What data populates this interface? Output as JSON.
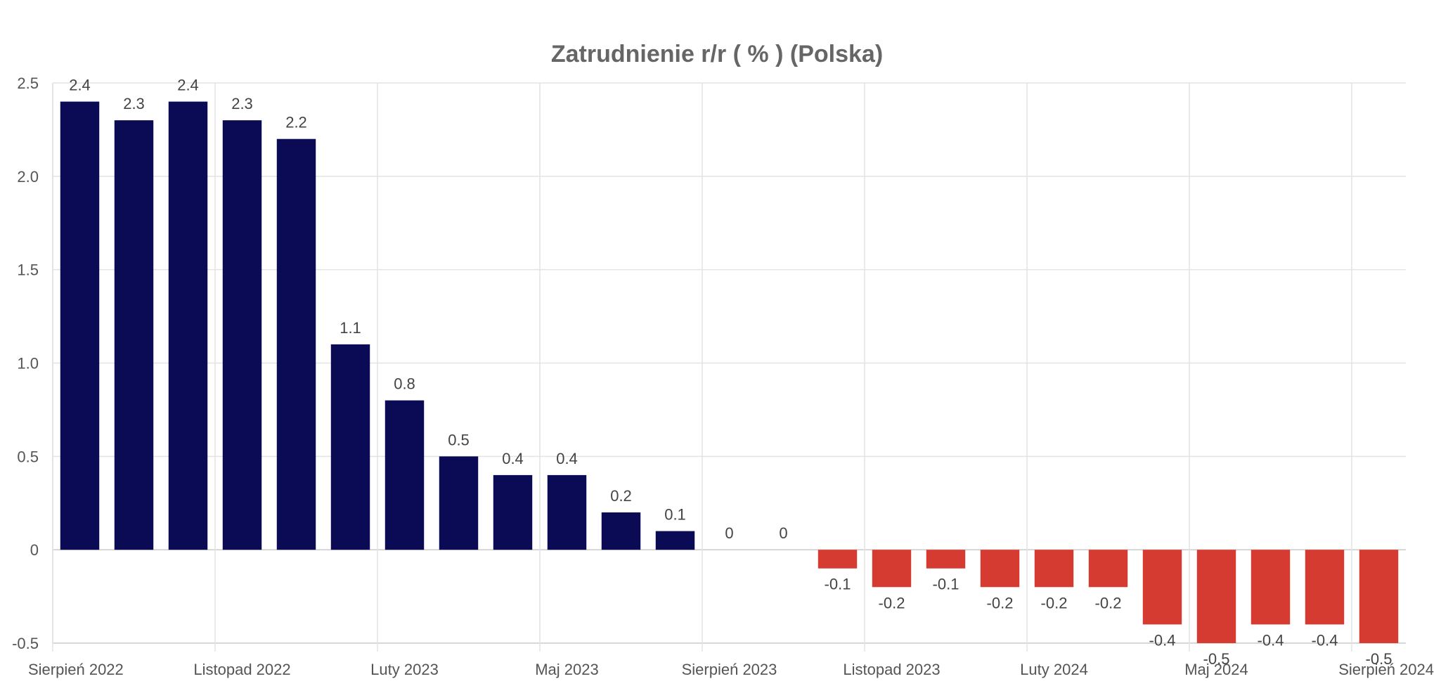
{
  "chart_data": {
    "type": "bar",
    "title": "Zatrudnienie r/r ( % ) (Polska)",
    "xlabel": "",
    "ylabel": "",
    "ylim": [
      -0.5,
      2.5
    ],
    "yticks": [
      {
        "value": 2.5,
        "label": "2.5"
      },
      {
        "value": 2.0,
        "label": "2.0"
      },
      {
        "value": 1.5,
        "label": "1.5"
      },
      {
        "value": 1.0,
        "label": "1.0"
      },
      {
        "value": 0.5,
        "label": "0.5"
      },
      {
        "value": 0,
        "label": "0"
      },
      {
        "value": -0.5,
        "label": "-0.5"
      }
    ],
    "xtick_labels": [
      "Sierpień 2022",
      "Listopad 2022",
      "Luty 2023",
      "Maj 2023",
      "Sierpień 2023",
      "Listopad 2023",
      "Luty 2024",
      "Maj 2024",
      "Sierpień 2024"
    ],
    "xtick_step": 3,
    "values": [
      2.4,
      2.3,
      2.4,
      2.3,
      2.2,
      1.1,
      0.8,
      0.5,
      0.4,
      0.4,
      0.2,
      0.1,
      0,
      0,
      -0.1,
      -0.2,
      -0.1,
      -0.2,
      -0.2,
      -0.2,
      -0.4,
      -0.5,
      -0.4,
      -0.4,
      -0.5
    ],
    "colors": {
      "positive": "#0b0b55",
      "negative": "#d63b32"
    },
    "grid": true,
    "legend": "none"
  }
}
